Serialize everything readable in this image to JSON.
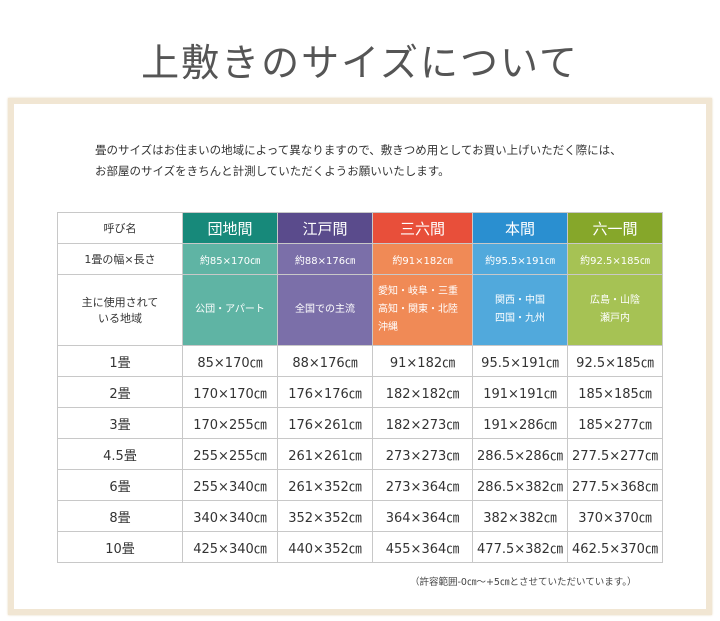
{
  "title": "上敷きのサイズについて",
  "intro": [
    "畳のサイズはお住まいの地域によって異なりますので、敷きつめ用としてお買い上げいただく際には、",
    "お部屋のサイズをきちんと計測していただくようお願いいたします。"
  ],
  "table": {
    "header": [
      "呼び名",
      "団地間",
      "江戸間",
      "三六間",
      "本間",
      "六一間"
    ],
    "size_row": [
      "1畳の幅×長さ",
      "約85×170㎝",
      "約88×176㎝",
      "約91×182㎝",
      "約95.5×191㎝",
      "約92.5×185㎝"
    ],
    "region_row": {
      "label": [
        "主に使用されて",
        "いる地域"
      ],
      "cells": [
        [
          "公団・アパート"
        ],
        [
          "全国での主流"
        ],
        [
          "愛知・岐阜・三重",
          "高知・関東・北陸",
          "沖縄"
        ],
        [
          "関西・中国",
          "四国・九州"
        ],
        [
          "広島・山陰",
          "瀬戸内"
        ]
      ]
    },
    "rows": [
      [
        "1畳",
        "85×170㎝",
        "88×176㎝",
        "91×182㎝",
        "95.5×191㎝",
        "92.5×185㎝"
      ],
      [
        "2畳",
        "170×170㎝",
        "176×176㎝",
        "182×182㎝",
        "191×191㎝",
        "185×185㎝"
      ],
      [
        "3畳",
        "170×255㎝",
        "176×261㎝",
        "182×273㎝",
        "191×286㎝",
        "185×277㎝"
      ],
      [
        "4.5畳",
        "255×255㎝",
        "261×261㎝",
        "273×273㎝",
        "286.5×286㎝",
        "277.5×277㎝"
      ],
      [
        "6畳",
        "255×340㎝",
        "261×352㎝",
        "273×364㎝",
        "286.5×382㎝",
        "277.5×368㎝"
      ],
      [
        "8畳",
        "340×340㎝",
        "352×352㎝",
        "364×364㎝",
        "382×382㎝",
        "370×370㎝"
      ],
      [
        "10畳",
        "425×340㎝",
        "440×352㎝",
        "455×364㎝",
        "477.5×382㎝",
        "462.5×370㎝"
      ]
    ]
  },
  "note": "（許容範囲-0㎝～+5㎝とさせていただいています。）"
}
